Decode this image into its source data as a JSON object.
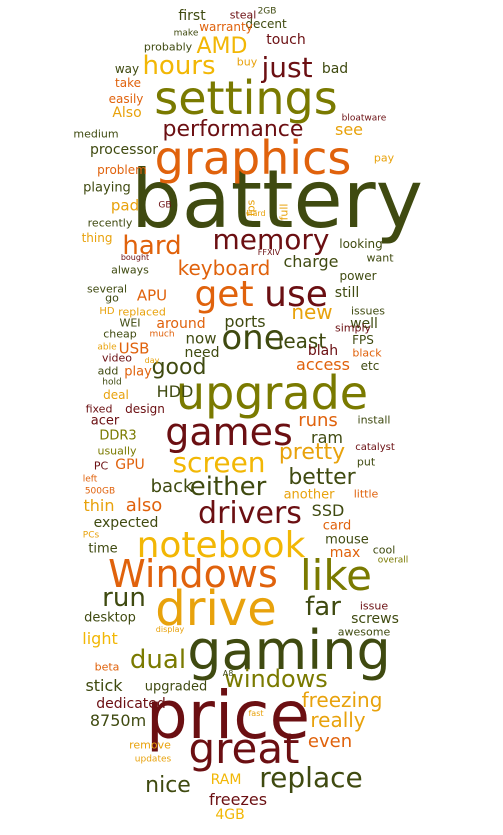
{
  "palette": {
    "maroon": "#6b0f12",
    "olive": "#7a7a00",
    "darkolive": "#3f4a10",
    "orange": "#e0620c",
    "gold": "#f2b705",
    "amber": "#e8a20c",
    "red": "#b0200a"
  },
  "words": [
    {
      "text": "battery",
      "color": "#3f4a10"
    },
    {
      "text": "price",
      "color": "#6b0f12"
    },
    {
      "text": "gaming",
      "color": "#3f4a10"
    },
    {
      "text": "drive",
      "color": "#e8a20c"
    },
    {
      "text": "graphics",
      "color": "#e0620c"
    },
    {
      "text": "settings",
      "color": "#7a7a00"
    },
    {
      "text": "upgrade",
      "color": "#7a7a00"
    },
    {
      "text": "games",
      "color": "#6b0f12"
    },
    {
      "text": "Windows",
      "color": "#e0620c"
    },
    {
      "text": "like",
      "color": "#7a7a00"
    },
    {
      "text": "notebook",
      "color": "#f2b705"
    },
    {
      "text": "great",
      "color": "#6b0f12"
    },
    {
      "text": "one",
      "color": "#3f4a10"
    },
    {
      "text": "use",
      "color": "#6b0f12"
    },
    {
      "text": "get",
      "color": "#e0620c"
    },
    {
      "text": "drivers",
      "color": "#6b0f12"
    },
    {
      "text": "memory",
      "color": "#6b0f12"
    },
    {
      "text": "hard",
      "color": "#e0620c"
    },
    {
      "text": "performance",
      "color": "#6b0f12"
    },
    {
      "text": "hours",
      "color": "#f2b705"
    },
    {
      "text": "just",
      "color": "#6b0f12"
    },
    {
      "text": "screen",
      "color": "#f2b705"
    },
    {
      "text": "either",
      "color": "#3f4a10"
    },
    {
      "text": "replace",
      "color": "#3f4a10"
    },
    {
      "text": "windows",
      "color": "#7a7a00"
    },
    {
      "text": "dual",
      "color": "#7a7a00"
    },
    {
      "text": "run",
      "color": "#3f4a10"
    },
    {
      "text": "far",
      "color": "#3f4a10"
    },
    {
      "text": "good",
      "color": "#3f4a10"
    },
    {
      "text": "keyboard",
      "color": "#e0620c"
    },
    {
      "text": "AMD",
      "color": "#f2b705"
    },
    {
      "text": "pretty",
      "color": "#e8a20c"
    },
    {
      "text": "better",
      "color": "#3f4a10"
    },
    {
      "text": "freezing",
      "color": "#e8a20c"
    },
    {
      "text": "really",
      "color": "#e8a20c"
    },
    {
      "text": "even",
      "color": "#e0620c"
    },
    {
      "text": "nice",
      "color": "#3f4a10"
    },
    {
      "text": "freezes",
      "color": "#6b0f12"
    },
    {
      "text": "RAM",
      "color": "#f2b705"
    },
    {
      "text": "4GB",
      "color": "#f2b705"
    },
    {
      "text": "8750m",
      "color": "#3f4a10"
    },
    {
      "text": "dedicated",
      "color": "#6b0f12"
    },
    {
      "text": "stick",
      "color": "#3f4a10"
    },
    {
      "text": "upgraded",
      "color": "#3f4a10"
    },
    {
      "text": "light",
      "color": "#f2b705"
    },
    {
      "text": "desktop",
      "color": "#3f4a10"
    },
    {
      "text": "time",
      "color": "#3f4a10"
    },
    {
      "text": "expected",
      "color": "#3f4a10"
    },
    {
      "text": "thin",
      "color": "#e8a20c"
    },
    {
      "text": "also",
      "color": "#e0620c"
    },
    {
      "text": "back",
      "color": "#3f4a10"
    },
    {
      "text": "GPU",
      "color": "#e0620c"
    },
    {
      "text": "PC",
      "color": "#6b0f12"
    },
    {
      "text": "DDR3",
      "color": "#7a7a00"
    },
    {
      "text": "usually",
      "color": "#7a7a00"
    },
    {
      "text": "acer",
      "color": "#6b0f12"
    },
    {
      "text": "fixed",
      "color": "#6b0f12"
    },
    {
      "text": "design",
      "color": "#6b0f12"
    },
    {
      "text": "deal",
      "color": "#e8a20c"
    },
    {
      "text": "HDD",
      "color": "#3f4a10"
    },
    {
      "text": "runs",
      "color": "#e0620c"
    },
    {
      "text": "ram",
      "color": "#3f4a10"
    },
    {
      "text": "access",
      "color": "#e0620c"
    },
    {
      "text": "least",
      "color": "#3f4a10"
    },
    {
      "text": "blah",
      "color": "#6b0f12"
    },
    {
      "text": "new",
      "color": "#e8a20c"
    },
    {
      "text": "still",
      "color": "#3f4a10"
    },
    {
      "text": "well",
      "color": "#3f4a10"
    },
    {
      "text": "charge",
      "color": "#3f4a10"
    },
    {
      "text": "ports",
      "color": "#3f4a10"
    },
    {
      "text": "now",
      "color": "#3f4a10"
    },
    {
      "text": "need",
      "color": "#3f4a10"
    },
    {
      "text": "around",
      "color": "#e0620c"
    },
    {
      "text": "APU",
      "color": "#e0620c"
    },
    {
      "text": "USB",
      "color": "#e0620c"
    },
    {
      "text": "play",
      "color": "#e0620c"
    },
    {
      "text": "SSD",
      "color": "#3f4a10"
    },
    {
      "text": "card",
      "color": "#e0620c"
    },
    {
      "text": "mouse",
      "color": "#3f4a10"
    },
    {
      "text": "max",
      "color": "#e0620c"
    },
    {
      "text": "another",
      "color": "#e8a20c"
    },
    {
      "text": "little",
      "color": "#e0620c"
    },
    {
      "text": "issue",
      "color": "#6b0f12"
    },
    {
      "text": "screws",
      "color": "#3f4a10"
    },
    {
      "text": "awesome",
      "color": "#3f4a10"
    },
    {
      "text": "processor",
      "color": "#3f4a10"
    },
    {
      "text": "problem",
      "color": "#e0620c"
    },
    {
      "text": "playing",
      "color": "#3f4a10"
    },
    {
      "text": "pad",
      "color": "#e8a20c"
    },
    {
      "text": "thing",
      "color": "#e8a20c"
    },
    {
      "text": "recently",
      "color": "#3f4a10"
    },
    {
      "text": "always",
      "color": "#3f4a10"
    },
    {
      "text": "see",
      "color": "#e8a20c"
    },
    {
      "text": "probably",
      "color": "#3f4a10"
    },
    {
      "text": "touch",
      "color": "#6b0f12"
    },
    {
      "text": "first",
      "color": "#3f4a10"
    },
    {
      "text": "decent",
      "color": "#3f4a10"
    },
    {
      "text": "warranty",
      "color": "#e0620c"
    },
    {
      "text": "steal",
      "color": "#6b0f12"
    },
    {
      "text": "bad",
      "color": "#3f4a10"
    },
    {
      "text": "Also",
      "color": "#e8a20c"
    },
    {
      "text": "medium",
      "color": "#3f4a10"
    },
    {
      "text": "pay",
      "color": "#e8a20c"
    },
    {
      "text": "looking",
      "color": "#3f4a10"
    },
    {
      "text": "want",
      "color": "#3f4a10"
    },
    {
      "text": "power",
      "color": "#3f4a10"
    },
    {
      "text": "several",
      "color": "#3f4a10"
    },
    {
      "text": "issues",
      "color": "#3f4a10"
    },
    {
      "text": "simply",
      "color": "#6b0f12"
    },
    {
      "text": "FPS",
      "color": "#3f4a10"
    },
    {
      "text": "black",
      "color": "#e0620c"
    },
    {
      "text": "etc",
      "color": "#3f4a10"
    },
    {
      "text": "install",
      "color": "#3f4a10"
    },
    {
      "text": "put",
      "color": "#3f4a10"
    },
    {
      "text": "catalyst",
      "color": "#6b0f12"
    },
    {
      "text": "cool",
      "color": "#3f4a10"
    },
    {
      "text": "overall",
      "color": "#7a7a00"
    },
    {
      "text": "take",
      "color": "#e0620c"
    },
    {
      "text": "easily",
      "color": "#e0620c"
    },
    {
      "text": "way",
      "color": "#3f4a10"
    },
    {
      "text": "buy",
      "color": "#e8a20c"
    },
    {
      "text": "make",
      "color": "#3f4a10"
    },
    {
      "text": "2GB",
      "color": "#3f4a10"
    },
    {
      "text": "bloatware",
      "color": "#6b0f12"
    },
    {
      "text": "fps",
      "color": "#e8a20c"
    },
    {
      "text": "full",
      "color": "#e8a20c"
    },
    {
      "text": "Hard",
      "color": "#e8a20c"
    },
    {
      "text": "GB",
      "color": "#6b0f12"
    },
    {
      "text": "FFXIV",
      "color": "#6b0f12"
    },
    {
      "text": "bought",
      "color": "#6b0f12"
    },
    {
      "text": "go",
      "color": "#3f4a10"
    },
    {
      "text": "HD",
      "color": "#e8a20c"
    },
    {
      "text": "replaced",
      "color": "#e8a20c"
    },
    {
      "text": "WEI",
      "color": "#3f4a10"
    },
    {
      "text": "cheap",
      "color": "#3f4a10"
    },
    {
      "text": "much",
      "color": "#e0620c"
    },
    {
      "text": "able",
      "color": "#e8a20c"
    },
    {
      "text": "video",
      "color": "#6b0f12"
    },
    {
      "text": "day",
      "color": "#e8a20c"
    },
    {
      "text": "add",
      "color": "#3f4a10"
    },
    {
      "text": "hold",
      "color": "#3f4a10"
    },
    {
      "text": "left",
      "color": "#e0620c"
    },
    {
      "text": "500GB",
      "color": "#e0620c"
    },
    {
      "text": "PCs",
      "color": "#e8a20c"
    },
    {
      "text": "display",
      "color": "#e8a20c"
    },
    {
      "text": "beta",
      "color": "#e0620c"
    },
    {
      "text": "A8",
      "color": "#3f4a10"
    },
    {
      "text": "fast",
      "color": "#e8a20c"
    },
    {
      "text": "remove",
      "color": "#e8a20c"
    },
    {
      "text": "updates",
      "color": "#e8a20c"
    }
  ]
}
